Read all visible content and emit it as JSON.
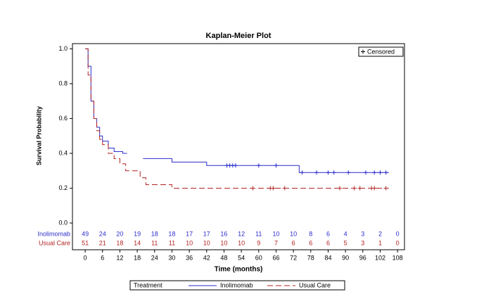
{
  "chart_data": {
    "type": "km",
    "title": "Kaplan-Meier Plot",
    "x_label": "Time (months)",
    "y_label": "Survival Probability",
    "xlim": [
      -4.4,
      110.4
    ],
    "ylim": [
      0,
      1.03
    ],
    "xticks": [
      0,
      6,
      12,
      18,
      24,
      30,
      36,
      42,
      48,
      54,
      60,
      66,
      72,
      78,
      84,
      90,
      96,
      102,
      108
    ],
    "yticks": [
      {
        "value": 0,
        "label": "0.0"
      },
      0.2,
      0.4,
      0.6,
      0.8,
      {
        "value": 1,
        "label": "1.0"
      }
    ],
    "series": [
      {
        "name": "Inolimomab",
        "color": "#2b2bcc",
        "dash": "none",
        "x": [
          0,
          1,
          2,
          3,
          4,
          5,
          6,
          8,
          10,
          13,
          14.5,
          17,
          20,
          30,
          42,
          74,
          105
        ],
        "values": [
          1,
          0.9,
          0.7,
          0.6,
          0.55,
          0.5,
          0.47,
          0.43,
          0.41,
          0.4,
          0.4,
          null,
          0.37,
          0.35,
          0.33,
          0.29,
          0.29
        ],
        "censored_x": [
          49,
          50,
          51,
          52,
          60,
          66,
          75,
          80,
          84,
          86,
          91,
          97,
          100,
          102,
          104
        ],
        "censored_y": [
          0.33,
          0.33,
          0.33,
          0.33,
          0.33,
          0.33,
          0.29,
          0.29,
          0.29,
          0.29,
          0.29,
          0.29,
          0.29,
          0.29,
          0.29
        ]
      },
      {
        "name": "Usual Care",
        "color": "#b22222",
        "dash": "8,4",
        "x": [
          0,
          1,
          2,
          3,
          4,
          5,
          6,
          8,
          10,
          12,
          14,
          19,
          21,
          30,
          105
        ],
        "values": [
          1,
          0.85,
          0.7,
          0.6,
          0.53,
          0.48,
          0.45,
          0.4,
          0.37,
          0.34,
          0.3,
          0.26,
          0.22,
          0.2,
          0.2
        ],
        "censored_x": [
          58,
          64,
          65,
          69,
          88,
          93,
          95,
          99,
          100,
          104
        ],
        "censored_y": [
          0.2,
          0.2,
          0.2,
          0.2,
          0.2,
          0.2,
          0.2,
          0.2,
          0.2,
          0.2
        ]
      }
    ],
    "risk_table": [
      {
        "label": "Inolimomab",
        "counts": [
          "49",
          "24",
          "20",
          "19",
          "18",
          "18",
          "17",
          "17",
          "16",
          "12",
          "11",
          "10",
          "10",
          "8",
          "6",
          "4",
          "3",
          "2",
          "0"
        ]
      },
      {
        "label": "Usual Care",
        "counts": [
          "51",
          "21",
          "18",
          "14",
          "11",
          "11",
          "10",
          "10",
          "10",
          "10",
          "9",
          "7",
          "6",
          "6",
          "6",
          "5",
          "3",
          "1",
          "0"
        ]
      }
    ],
    "legend_title": "Treatment",
    "censored_label": "Censored"
  }
}
